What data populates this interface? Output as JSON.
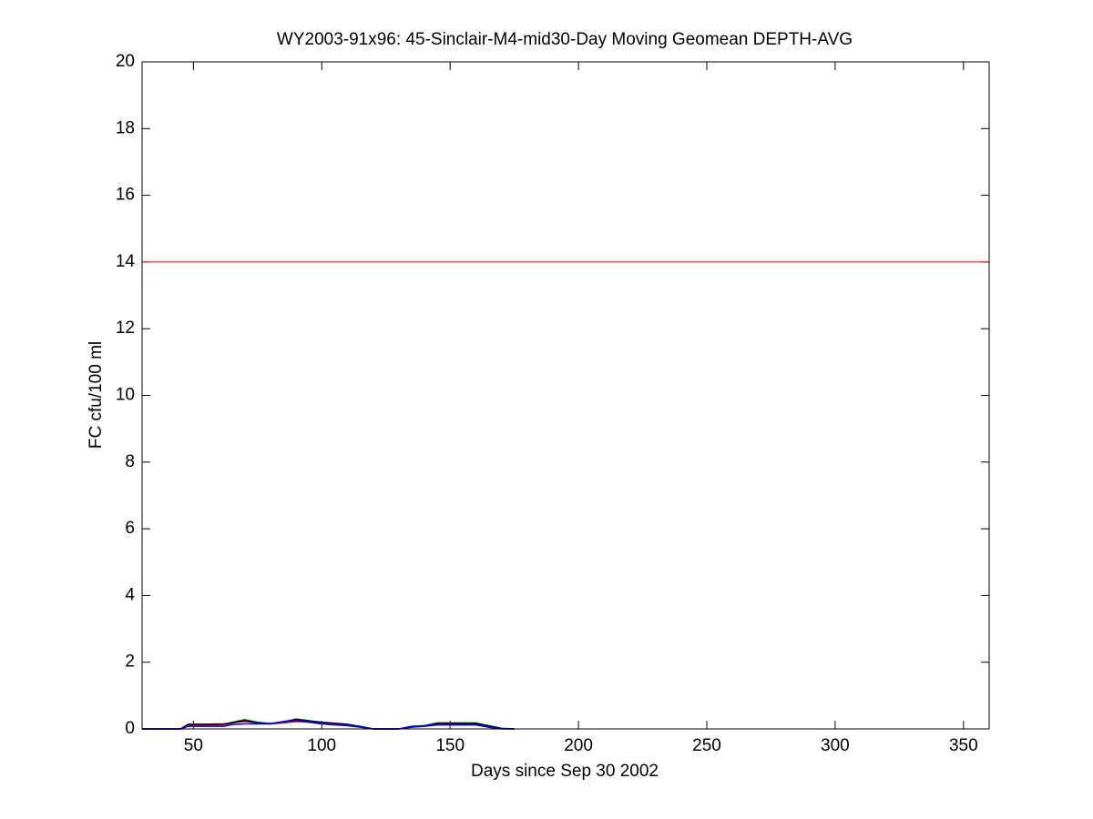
{
  "chart_data": {
    "type": "line",
    "title": "WY2003-91x96: 45-Sinclair-M4-mid30-Day Moving Geomean DEPTH-AVG",
    "x_label": "Days since Sep 30 2002",
    "y_label": "FC cfu/100 ml",
    "x": [
      30,
      40,
      45,
      48,
      55,
      62,
      65,
      70,
      75,
      80,
      85,
      90,
      95,
      100,
      105,
      110,
      115,
      120,
      125,
      130,
      135,
      140,
      145,
      150,
      155,
      160,
      165,
      170,
      175
    ],
    "series": [
      {
        "color": "#008000",
        "values": [
          0,
          0,
          0,
          0.12,
          0.12,
          0.14,
          0.2,
          0.28,
          0.2,
          0.16,
          0.2,
          0.3,
          0.25,
          0.18,
          0.15,
          0.12,
          0.08,
          0,
          0,
          0,
          0.08,
          0.1,
          0.18,
          0.18,
          0.18,
          0.18,
          0.1,
          0.02,
          0
        ]
      },
      {
        "color": "#ff0000",
        "values": [
          0,
          0,
          0,
          0.1,
          0.1,
          0.12,
          0.18,
          0.22,
          0.18,
          0.15,
          0.18,
          0.22,
          0.2,
          0.15,
          0.14,
          0.1,
          0.06,
          0,
          0,
          0,
          0.06,
          0.08,
          0.14,
          0.14,
          0.14,
          0.14,
          0.08,
          0.01,
          0
        ]
      },
      {
        "color": "#000000",
        "values": [
          0,
          0,
          0,
          0.14,
          0.14,
          0.15,
          0.18,
          0.25,
          0.18,
          0.16,
          0.22,
          0.28,
          0.24,
          0.2,
          0.17,
          0.14,
          0.07,
          0,
          0,
          0,
          0.07,
          0.09,
          0.16,
          0.17,
          0.16,
          0.16,
          0.09,
          0.01,
          0
        ]
      },
      {
        "color": "#0000ff",
        "values": [
          0,
          0,
          0,
          0.08,
          0.08,
          0.08,
          0.13,
          0.15,
          0.15,
          0.15,
          0.2,
          0.25,
          0.2,
          0.15,
          0.12,
          0.1,
          0.05,
          0,
          0,
          0,
          0.05,
          0.08,
          0.12,
          0.12,
          0.12,
          0.12,
          0.05,
          0,
          0
        ]
      }
    ],
    "threshold": 14,
    "threshold_color": "#ff0000",
    "xlim": [
      30,
      360
    ],
    "xticks": [
      50,
      100,
      150,
      200,
      250,
      300,
      350
    ],
    "ylim": [
      0,
      20
    ],
    "yticks": [
      0,
      2,
      4,
      6,
      8,
      10,
      12,
      14,
      16,
      18,
      20
    ],
    "grid": false
  }
}
